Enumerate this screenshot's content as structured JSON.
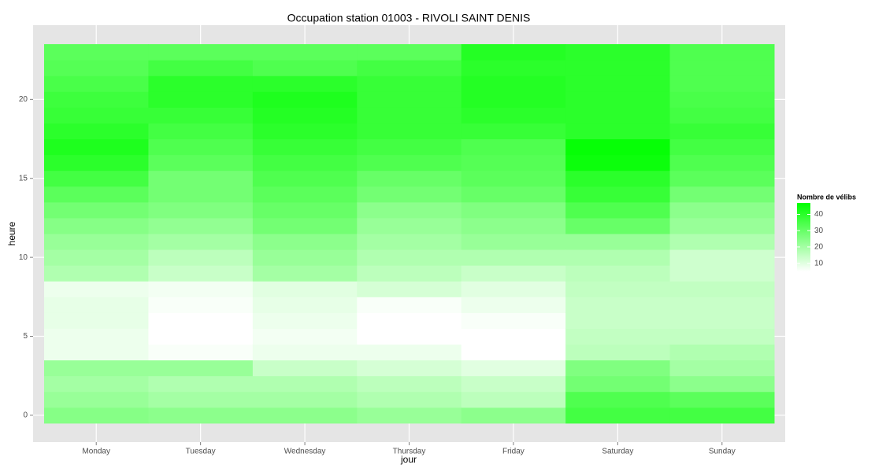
{
  "chart_data": {
    "type": "heatmap",
    "title": "Occupation station 01003 - RIVOLI SAINT DENIS",
    "x_label": "jour",
    "y_label": "heure",
    "categories": [
      "Monday",
      "Tuesday",
      "Wednesday",
      "Thursday",
      "Friday",
      "Saturday",
      "Sunday"
    ],
    "y": [
      0,
      1,
      2,
      3,
      4,
      5,
      6,
      7,
      8,
      9,
      10,
      11,
      12,
      13,
      14,
      15,
      16,
      17,
      18,
      19,
      20,
      21,
      22,
      23
    ],
    "values": [
      [
        25,
        22,
        20,
        22,
        8,
        8,
        9,
        9,
        8,
        18,
        20,
        22,
        25,
        28,
        32,
        36,
        40,
        42,
        40,
        38,
        37,
        35,
        33,
        32
      ],
      [
        24,
        20,
        18,
        22,
        6,
        5,
        5,
        6,
        7,
        14,
        16,
        20,
        23,
        26,
        28,
        28,
        32,
        34,
        36,
        38,
        40,
        40,
        36,
        32
      ],
      [
        24,
        20,
        18,
        14,
        8,
        7,
        8,
        9,
        10,
        20,
        22,
        24,
        28,
        30,
        32,
        34,
        36,
        38,
        40,
        41,
        42,
        40,
        34,
        32
      ],
      [
        22,
        18,
        16,
        12,
        8,
        5,
        5,
        6,
        12,
        16,
        18,
        20,
        22,
        24,
        28,
        30,
        34,
        36,
        38,
        38,
        38,
        38,
        36,
        32
      ],
      [
        24,
        16,
        14,
        10,
        5,
        5,
        6,
        8,
        10,
        14,
        18,
        22,
        24,
        26,
        30,
        32,
        33,
        34,
        38,
        40,
        41,
        41,
        40,
        41
      ],
      [
        36,
        34,
        28,
        26,
        16,
        15,
        14,
        14,
        15,
        16,
        18,
        22,
        30,
        34,
        38,
        40,
        45,
        46,
        40,
        40,
        40,
        40,
        40,
        40
      ],
      [
        36,
        32,
        24,
        20,
        18,
        15,
        14,
        14,
        15,
        13,
        13,
        18,
        22,
        24,
        28,
        32,
        34,
        36,
        38,
        36,
        35,
        34,
        34,
        34
      ]
    ],
    "ylim": [
      -1.7,
      24.7
    ],
    "yticks": [
      0,
      5,
      10,
      15,
      20
    ],
    "grid": true,
    "legend": {
      "title": "Nombre de vélibs",
      "lim": [
        5,
        47
      ],
      "ticks": [
        10,
        20,
        30,
        40
      ],
      "low": "#ffffff",
      "high": "#00ff00"
    }
  }
}
